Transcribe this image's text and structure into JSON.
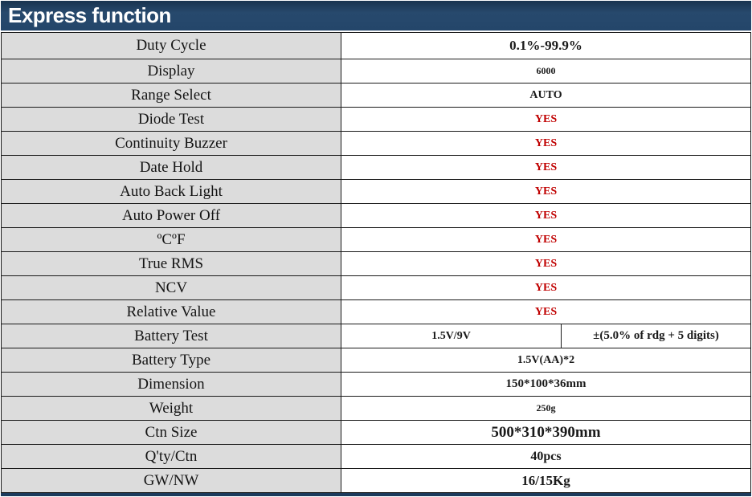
{
  "header": {
    "title": "Express function"
  },
  "colors": {
    "header_bg": "#24466a",
    "label_bg": "#dcdcdc",
    "value_red": "#c00000",
    "border": "#1a1a1a",
    "header_text": "#ffffff"
  },
  "table": {
    "rows": [
      {
        "label": "Duty Cycle",
        "value": "0.1%-99.9%"
      },
      {
        "label": "Display",
        "value": "6000"
      },
      {
        "label": "Range Select",
        "value": "AUTO"
      },
      {
        "label": "Diode Test",
        "value": "YES"
      },
      {
        "label": "Continuity Buzzer",
        "value": "YES"
      },
      {
        "label": "Date Hold",
        "value": "YES"
      },
      {
        "label": "Auto Back Light",
        "value": "YES"
      },
      {
        "label": "Auto Power Off",
        "value": "YES"
      },
      {
        "label": "ºCºF",
        "value": "YES"
      },
      {
        "label": "True RMS",
        "value": "YES"
      },
      {
        "label": "NCV",
        "value": "YES"
      },
      {
        "label": "Relative Value",
        "value": "YES"
      },
      {
        "label": "Battery Test",
        "value": "1.5V/9V",
        "value2": "±(5.0% of rdg + 5 digits)"
      },
      {
        "label": "Battery Type",
        "value": "1.5V(AA)*2"
      },
      {
        "label": "Dimension",
        "value": "150*100*36mm"
      },
      {
        "label": "Weight",
        "value": "250g"
      },
      {
        "label": "Ctn Size",
        "value": "500*310*390mm"
      },
      {
        "label": "Q'ty/Ctn",
        "value": "40pcs"
      },
      {
        "label": "GW/NW",
        "value": "16/15Kg"
      }
    ]
  }
}
